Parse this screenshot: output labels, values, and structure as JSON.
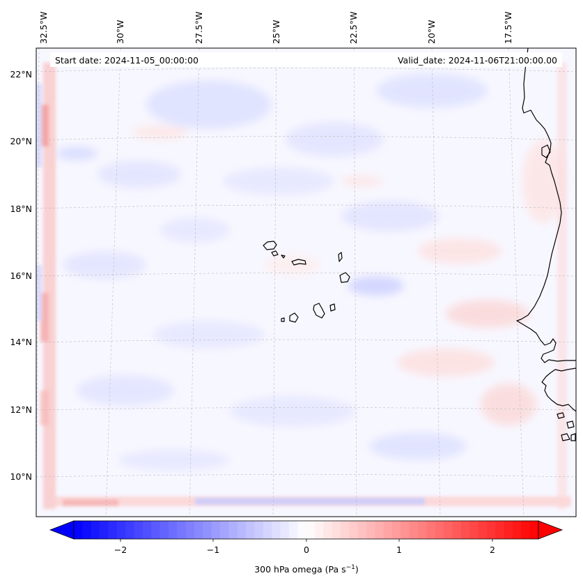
{
  "header": {
    "start_date": "Start date: 2024-11-05_00:00:00",
    "valid_date": "Valid_date: 2024-11-06T21:00:00.00"
  },
  "lon_ticks": [
    "32.5°W",
    "30°W",
    "27.5°W",
    "25°W",
    "22.5°W",
    "20°W",
    "17.5°W"
  ],
  "lat_ticks": [
    "22°N",
    "20°N",
    "18°N",
    "16°N",
    "14°N",
    "12°N",
    "10°N"
  ],
  "colorbar": {
    "ticks": [
      "−2",
      "−1",
      "0",
      "1",
      "2"
    ],
    "label": "300 hPa omega (Pa s",
    "label_sup": "−1",
    "label_end": ")",
    "min": -2.7,
    "max": 2.7,
    "levels": 54,
    "low_color": "#0000ff",
    "mid_color": "#ffffff",
    "high_color": "#ff0000"
  },
  "map": {
    "variable": "300 hPa omega",
    "units": "Pa s-1",
    "coastline_color": "#000000",
    "gridline_color": "#b0b0b0"
  }
}
